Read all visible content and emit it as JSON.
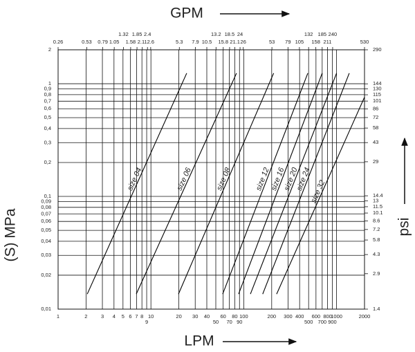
{
  "chart_data": {
    "type": "line",
    "x_label": "LPM",
    "x2_label": "GPM",
    "y_label": "(S) MPa",
    "y2_label": "psi",
    "log_x": true,
    "log_y": true,
    "grid": true,
    "color": "#000000",
    "xlim": [
      1,
      2000
    ],
    "xticks": [
      1,
      2,
      3,
      4,
      5,
      6,
      7,
      8,
      9,
      10,
      20,
      30,
      40,
      50,
      60,
      70,
      80,
      90,
      100,
      200,
      300,
      400,
      500,
      600,
      700,
      800,
      900,
      1000,
      2000
    ],
    "x2lim": [
      0.26,
      530
    ],
    "x2ticks": [
      0.26,
      0.53,
      0.79,
      1.05,
      1.32,
      1.58,
      1.85,
      2.11,
      2.4,
      2.6,
      5.3,
      7.9,
      10.5,
      13.2,
      15.8,
      18.5,
      21.1,
      24,
      26,
      53,
      79,
      105,
      132,
      158,
      185,
      211,
      240,
      530
    ],
    "ylim": [
      0.01,
      2
    ],
    "yticks": [
      2,
      1,
      {
        "value": 0.9,
        "label": "0,9"
      },
      {
        "value": 0.8,
        "label": "0,8"
      },
      {
        "value": 0.7,
        "label": "0,7"
      },
      {
        "value": 0.6,
        "label": "0,6"
      },
      {
        "value": 0.5,
        "label": "0,5"
      },
      {
        "value": 0.4,
        "label": "0,4"
      },
      {
        "value": 0.3,
        "label": "0,3"
      },
      {
        "value": 0.2,
        "label": "0,2"
      },
      {
        "value": 0.1,
        "label": "0,1"
      },
      {
        "value": 0.09,
        "label": "0,09"
      },
      {
        "value": 0.08,
        "label": "0,08"
      },
      {
        "value": 0.07,
        "label": "0,07"
      },
      {
        "value": 0.06,
        "label": "0,06"
      },
      {
        "value": 0.05,
        "label": "0,05"
      },
      {
        "value": 0.04,
        "label": "0,04"
      },
      {
        "value": 0.03,
        "label": "0,03"
      },
      {
        "value": 0.02,
        "label": "0,02"
      },
      {
        "value": 0.01,
        "label": "0,01"
      }
    ],
    "y2lim": [
      1.4,
      290
    ],
    "y2ticks": [
      290,
      144,
      130,
      115,
      101,
      86,
      72,
      58,
      43,
      29,
      14.4,
      13,
      11.5,
      10.1,
      8.6,
      7.2,
      5.8,
      4.3,
      2.9,
      1.4
    ],
    "series": [
      {
        "name": "size 04",
        "x": [
          2.06,
          24.3
        ],
        "values": [
          0.0136,
          1.24
        ]
      },
      {
        "name": "size 06",
        "x": [
          6.95,
          83.6
        ],
        "values": [
          0.0136,
          1.24
        ]
      },
      {
        "name": "size 08",
        "x": [
          19.8,
          210
        ],
        "values": [
          0.0136,
          1.24
        ]
      },
      {
        "name": "size 12",
        "x": [
          59.3,
          490
        ],
        "values": [
          0.0136,
          1.24
        ]
      },
      {
        "name": "size 16",
        "x": [
          88,
          700
        ],
        "values": [
          0.0136,
          1.24
        ]
      },
      {
        "name": "size 20",
        "x": [
          118,
          1000
        ],
        "values": [
          0.0136,
          1.24
        ]
      },
      {
        "name": "size 24",
        "x": [
          160,
          1370
        ],
        "values": [
          0.0136,
          1.24
        ]
      },
      {
        "name": "size 32",
        "x": [
          226,
          2000
        ],
        "values": [
          0.0136,
          0.76
        ]
      }
    ]
  }
}
